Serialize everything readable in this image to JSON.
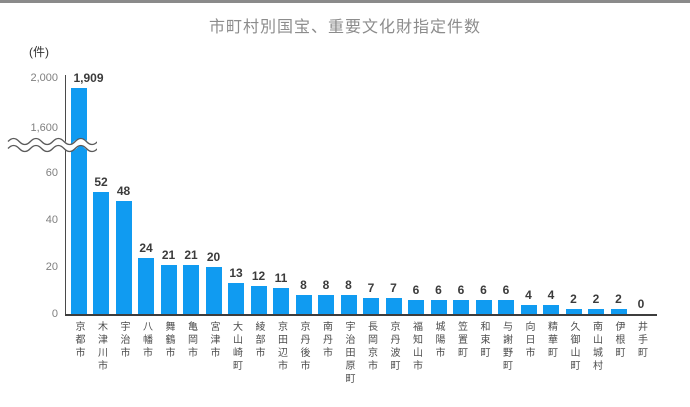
{
  "window": {
    "top_strip_color": "#8a8a8a"
  },
  "chart": {
    "title": "市町村別国宝、重要文化財指定件数",
    "unit_label": "(件)",
    "bar_color": "#109bf1",
    "title_color": "#8c8c8c"
  },
  "chart_data": {
    "type": "bar",
    "title": "市町村別国宝、重要文化財指定件数",
    "xlabel": "",
    "ylabel": "(件)",
    "grid": false,
    "legend": false,
    "categories": [
      "京都市",
      "木津川市",
      "宇治市",
      "八幡市",
      "舞鶴市",
      "亀岡市",
      "宮津市",
      "大山崎町",
      "綾部市",
      "京田辺市",
      "京丹後市",
      "南丹市",
      "宇治田原町",
      "長岡京市",
      "京丹波町",
      "福知山市",
      "城陽市",
      "笠置町",
      "和束町",
      "与謝野町",
      "向日市",
      "精華町",
      "久御山町",
      "南山城村",
      "伊根町",
      "井手町"
    ],
    "values": [
      1909,
      52,
      48,
      24,
      21,
      21,
      20,
      13,
      12,
      11,
      8,
      8,
      8,
      7,
      7,
      6,
      6,
      6,
      6,
      6,
      4,
      4,
      2,
      2,
      2,
      0
    ],
    "data_labels": [
      "1,909",
      "52",
      "48",
      "24",
      "21",
      "21",
      "20",
      "13",
      "12",
      "11",
      "8",
      "8",
      "8",
      "7",
      "7",
      "6",
      "6",
      "6",
      "6",
      "6",
      "4",
      "4",
      "2",
      "2",
      "2",
      "0"
    ],
    "y_axis": {
      "broken": true,
      "break_between": [
        60,
        1600
      ],
      "lower_tick_values": [
        0,
        20,
        40,
        60
      ],
      "lower_tick_labels": [
        "0",
        "20",
        "40",
        "60"
      ],
      "upper_tick_labels": [
        "1,600",
        "2,000"
      ],
      "ylim_lower": [
        0,
        60
      ],
      "ylim_upper": [
        1600,
        2000
      ]
    },
    "bar_color": "#109bf1"
  }
}
